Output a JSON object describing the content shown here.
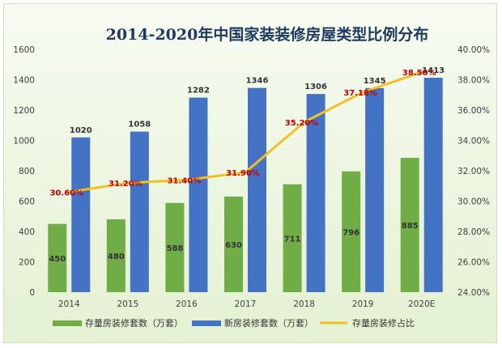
{
  "chart_data": {
    "type": "bar",
    "title": "2014-2020年中国家装装修房屋类型比例分布",
    "categories": [
      "2014",
      "2015",
      "2016",
      "2017",
      "2018",
      "2019",
      "2020E"
    ],
    "series": [
      {
        "name": "存量房装修套数（万套）",
        "type": "bar",
        "axis": "left",
        "color": "#70ad47",
        "values": [
          450,
          480,
          588,
          630,
          711,
          796,
          885
        ]
      },
      {
        "name": "新房装修套数（万套）",
        "type": "bar",
        "axis": "left",
        "color": "#4472c4",
        "values": [
          1020,
          1058,
          1282,
          1346,
          1306,
          1345,
          1413
        ]
      },
      {
        "name": "存量房装修占比",
        "type": "line",
        "axis": "right",
        "color": "#f4c020",
        "values": [
          30.6,
          31.2,
          31.4,
          31.9,
          35.2,
          37.18,
          38.5
        ],
        "labels": [
          "30.60%",
          "31.20%",
          "31.40%",
          "31.90%",
          "35.20%",
          "37.18%",
          "38.50%"
        ]
      }
    ],
    "ylim": [
      0,
      1600
    ],
    "y_ticks": [
      "0",
      "200",
      "400",
      "600",
      "800",
      "1000",
      "1200",
      "1400",
      "1600"
    ],
    "y2lim": [
      24,
      40
    ],
    "y2_ticks": [
      "24.00%",
      "26.00%",
      "28.00%",
      "30.00%",
      "32.00%",
      "34.00%",
      "36.00%",
      "38.00%",
      "40.00%"
    ],
    "grid": false,
    "legend_position": "bottom"
  }
}
